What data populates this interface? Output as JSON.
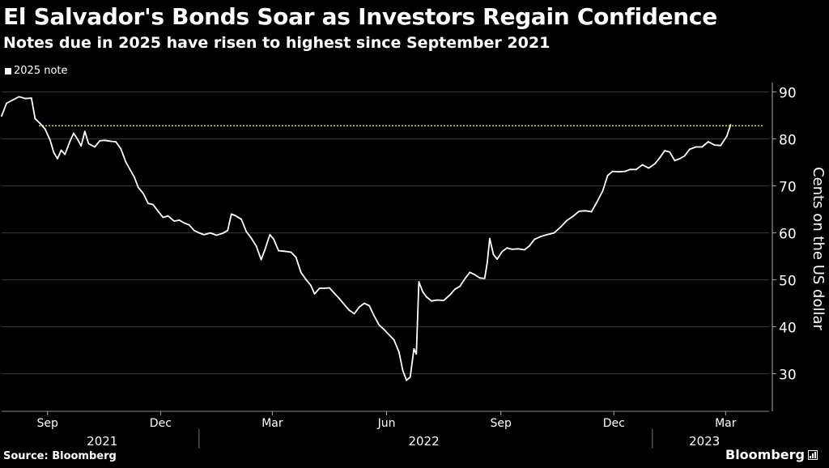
{
  "title": "El Salvador's Bonds Soar as Investors Regain Confidence",
  "subtitle": "Notes due in 2025 have risen to highest since September 2021",
  "source": "Source: Bloomberg",
  "brand": "Bloomberg",
  "chart_data": {
    "type": "line",
    "ylabel": "Cents on the US dollar",
    "ylim": [
      22,
      92
    ],
    "yticks": [
      30,
      40,
      50,
      60,
      70,
      80,
      90
    ],
    "xlim": [
      "2021-07-26",
      "2023-04-05"
    ],
    "xticks": [
      {
        "label": "Sep",
        "date": "2021-09-01"
      },
      {
        "label": "Dec",
        "date": "2021-12-01"
      },
      {
        "label": "Mar",
        "date": "2022-03-01"
      },
      {
        "label": "Jun",
        "date": "2022-06-01"
      },
      {
        "label": "Sep",
        "date": "2022-09-01"
      },
      {
        "label": "Dec",
        "date": "2022-12-01"
      },
      {
        "label": "Mar",
        "date": "2023-03-01"
      }
    ],
    "year_labels": [
      {
        "label": "2021",
        "center": "2021-10-15"
      },
      {
        "label": "2022",
        "center": "2022-07-01"
      },
      {
        "label": "2023",
        "center": "2023-02-12"
      }
    ],
    "year_dividers": [
      "2022-01-01",
      "2023-01-01"
    ],
    "reference_line": {
      "value": 82.8,
      "from": "2021-08-25",
      "to": "2023-04-01",
      "color": "#d4e04a"
    },
    "line_color": "#ffffff",
    "series": [
      {
        "name": "2025 note",
        "points": [
          [
            "2021-07-26",
            84.9
          ],
          [
            "2021-07-30",
            87.6
          ],
          [
            "2021-08-04",
            88.3
          ],
          [
            "2021-08-09",
            89.0
          ],
          [
            "2021-08-14",
            88.6
          ],
          [
            "2021-08-19",
            88.7
          ],
          [
            "2021-08-22",
            84.3
          ],
          [
            "2021-08-26",
            83.3
          ],
          [
            "2021-08-30",
            82.1
          ],
          [
            "2021-09-03",
            79.8
          ],
          [
            "2021-09-06",
            77.1
          ],
          [
            "2021-09-09",
            75.8
          ],
          [
            "2021-09-12",
            77.6
          ],
          [
            "2021-09-15",
            76.7
          ],
          [
            "2021-09-19",
            79.5
          ],
          [
            "2021-09-22",
            81.2
          ],
          [
            "2021-09-25",
            80.0
          ],
          [
            "2021-09-28",
            78.5
          ],
          [
            "2021-10-01",
            81.6
          ],
          [
            "2021-10-04",
            79.0
          ],
          [
            "2021-10-09",
            78.3
          ],
          [
            "2021-10-13",
            79.6
          ],
          [
            "2021-10-17",
            79.7
          ],
          [
            "2021-10-22",
            79.5
          ],
          [
            "2021-10-26",
            79.4
          ],
          [
            "2021-10-30",
            77.9
          ],
          [
            "2021-11-03",
            75.1
          ],
          [
            "2021-11-07",
            73.2
          ],
          [
            "2021-11-10",
            71.8
          ],
          [
            "2021-11-13",
            69.7
          ],
          [
            "2021-11-17",
            68.4
          ],
          [
            "2021-11-21",
            66.3
          ],
          [
            "2021-11-25",
            66.0
          ],
          [
            "2021-11-29",
            64.6
          ],
          [
            "2021-12-03",
            63.3
          ],
          [
            "2021-12-07",
            63.6
          ],
          [
            "2021-12-12",
            62.5
          ],
          [
            "2021-12-16",
            62.7
          ],
          [
            "2021-12-20",
            62.1
          ],
          [
            "2021-12-24",
            61.7
          ],
          [
            "2021-12-28",
            60.5
          ],
          [
            "2022-01-01",
            60.0
          ],
          [
            "2022-01-05",
            59.6
          ],
          [
            "2022-01-10",
            60.0
          ],
          [
            "2022-01-15",
            59.5
          ],
          [
            "2022-01-20",
            59.9
          ],
          [
            "2022-01-24",
            60.5
          ],
          [
            "2022-01-27",
            64.0
          ],
          [
            "2022-01-30",
            63.7
          ],
          [
            "2022-02-04",
            62.9
          ],
          [
            "2022-02-08",
            60.3
          ],
          [
            "2022-02-12",
            58.9
          ],
          [
            "2022-02-16",
            57.2
          ],
          [
            "2022-02-20",
            54.3
          ],
          [
            "2022-02-23",
            56.4
          ],
          [
            "2022-02-27",
            59.6
          ],
          [
            "2022-03-02",
            58.7
          ],
          [
            "2022-03-06",
            56.2
          ],
          [
            "2022-03-10",
            56.1
          ],
          [
            "2022-03-16",
            55.9
          ],
          [
            "2022-03-20",
            54.8
          ],
          [
            "2022-03-24",
            51.6
          ],
          [
            "2022-03-28",
            50.1
          ],
          [
            "2022-04-01",
            48.8
          ],
          [
            "2022-04-04",
            47.0
          ],
          [
            "2022-04-08",
            48.2
          ],
          [
            "2022-04-12",
            48.2
          ],
          [
            "2022-04-16",
            48.3
          ],
          [
            "2022-04-20",
            47.1
          ],
          [
            "2022-04-24",
            46.0
          ],
          [
            "2022-04-28",
            44.7
          ],
          [
            "2022-05-02",
            43.5
          ],
          [
            "2022-05-06",
            42.8
          ],
          [
            "2022-05-10",
            44.2
          ],
          [
            "2022-05-14",
            45.0
          ],
          [
            "2022-05-18",
            44.5
          ],
          [
            "2022-05-22",
            42.3
          ],
          [
            "2022-05-26",
            40.4
          ],
          [
            "2022-05-30",
            39.4
          ],
          [
            "2022-06-03",
            38.3
          ],
          [
            "2022-06-07",
            37.2
          ],
          [
            "2022-06-11",
            34.6
          ],
          [
            "2022-06-14",
            30.7
          ],
          [
            "2022-06-17",
            28.6
          ],
          [
            "2022-06-20",
            29.3
          ],
          [
            "2022-06-23",
            35.3
          ],
          [
            "2022-06-25",
            34.2
          ],
          [
            "2022-06-27",
            49.6
          ],
          [
            "2022-06-30",
            47.5
          ],
          [
            "2022-07-03",
            46.4
          ],
          [
            "2022-07-07",
            45.5
          ],
          [
            "2022-07-12",
            45.7
          ],
          [
            "2022-07-17",
            45.6
          ],
          [
            "2022-07-22",
            46.8
          ],
          [
            "2022-07-26",
            48.0
          ],
          [
            "2022-07-30",
            48.6
          ],
          [
            "2022-08-03",
            50.2
          ],
          [
            "2022-08-07",
            51.6
          ],
          [
            "2022-08-11",
            51.1
          ],
          [
            "2022-08-15",
            50.4
          ],
          [
            "2022-08-19",
            50.3
          ],
          [
            "2022-08-21",
            53.6
          ],
          [
            "2022-08-23",
            58.8
          ],
          [
            "2022-08-26",
            55.4
          ],
          [
            "2022-08-29",
            54.4
          ],
          [
            "2022-09-02",
            56.0
          ],
          [
            "2022-09-06",
            56.8
          ],
          [
            "2022-09-10",
            56.5
          ],
          [
            "2022-09-15",
            56.6
          ],
          [
            "2022-09-20",
            56.4
          ],
          [
            "2022-09-24",
            57.2
          ],
          [
            "2022-09-28",
            58.6
          ],
          [
            "2022-10-03",
            59.2
          ],
          [
            "2022-10-08",
            59.6
          ],
          [
            "2022-10-14",
            60.0
          ],
          [
            "2022-10-19",
            61.2
          ],
          [
            "2022-10-24",
            62.6
          ],
          [
            "2022-10-29",
            63.5
          ],
          [
            "2022-11-03",
            64.6
          ],
          [
            "2022-11-08",
            64.7
          ],
          [
            "2022-11-13",
            64.5
          ],
          [
            "2022-11-17",
            66.4
          ],
          [
            "2022-11-22",
            68.9
          ],
          [
            "2022-11-26",
            72.2
          ],
          [
            "2022-11-30",
            73.1
          ],
          [
            "2022-12-05",
            73.0
          ],
          [
            "2022-12-10",
            73.1
          ],
          [
            "2022-12-14",
            73.5
          ],
          [
            "2022-12-19",
            73.5
          ],
          [
            "2022-12-24",
            74.5
          ],
          [
            "2022-12-29",
            73.8
          ],
          [
            "2023-01-03",
            74.7
          ],
          [
            "2023-01-07",
            76.0
          ],
          [
            "2023-01-11",
            77.5
          ],
          [
            "2023-01-15",
            77.2
          ],
          [
            "2023-01-19",
            75.4
          ],
          [
            "2023-01-23",
            75.8
          ],
          [
            "2023-01-27",
            76.4
          ],
          [
            "2023-01-31",
            77.8
          ],
          [
            "2023-02-05",
            78.3
          ],
          [
            "2023-02-10",
            78.3
          ],
          [
            "2023-02-15",
            79.4
          ],
          [
            "2023-02-20",
            78.7
          ],
          [
            "2023-02-25",
            78.6
          ],
          [
            "2023-03-02",
            80.6
          ],
          [
            "2023-03-05",
            83.0
          ]
        ]
      }
    ]
  }
}
